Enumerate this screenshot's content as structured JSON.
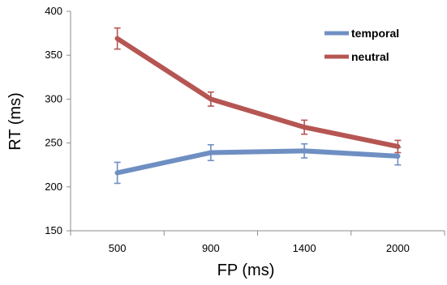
{
  "chart_data": {
    "type": "line",
    "title": "",
    "xlabel": "FP (ms)",
    "ylabel": "RT (ms)",
    "categories": [
      "500",
      "900",
      "1400",
      "2000"
    ],
    "ylim": [
      150,
      400
    ],
    "yticks": [
      150,
      200,
      250,
      300,
      350,
      400
    ],
    "grid": false,
    "legend_position": "top-right",
    "series": [
      {
        "name": "temporal",
        "color": "#6f8fc3",
        "values": [
          216,
          239,
          241,
          235
        ],
        "error": [
          12,
          9,
          8,
          10
        ]
      },
      {
        "name": "neutral",
        "color": "#b55653",
        "values": [
          369,
          300,
          268,
          246
        ],
        "error": [
          12,
          8,
          8,
          7
        ]
      }
    ]
  }
}
